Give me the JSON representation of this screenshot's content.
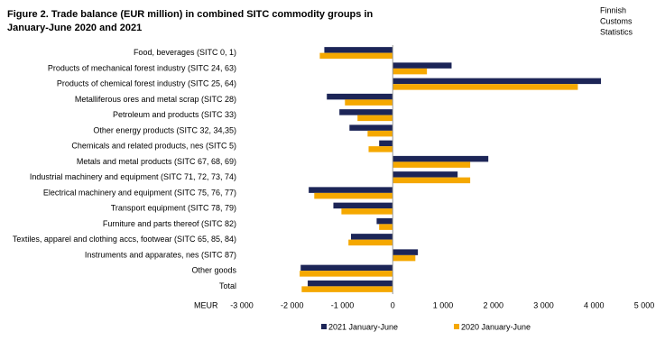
{
  "chart_data": {
    "type": "hbar",
    "title": [
      "Figure 2. Trade balance (EUR million) in combined SITC commodity groups in",
      "January-June 2020 and 2021"
    ],
    "source": [
      "Finnish",
      "Customs",
      "Statistics"
    ],
    "x_axis_label": "MEUR",
    "categories": [
      "Food, beverages (SITC 0, 1)",
      "Products of mechanical forest industry (SITC 24, 63)",
      "Products of chemical forest industry (SITC 25, 64)",
      "Metalliferous ores and metal scrap (SITC 28)",
      "Petroleum and products (SITC 33)",
      "Other energy products (SITC 32, 34,35)",
      "Chemicals and related products, nes (SITC 5)",
      "Metals and metal products (SITC 67, 68, 69)",
      "Industrial machinery and equipment (SITC 71, 72, 73, 74)",
      "Electrical machinery and equipment (SITC 75, 76, 77)",
      "Transport equipment (SITC 78, 79)",
      "Furniture and parts thereof (SITC 82)",
      "Textiles, apparel and clothing accs, footwear (SITC 65, 85, 84)",
      "Instruments and apparates, nes (SITC 87)",
      "Other goods",
      "Total"
    ],
    "series": [
      {
        "name": "2021 January-June",
        "color": "#1c2557",
        "values": [
          -1360,
          1170,
          4140,
          -1310,
          -1060,
          -860,
          -270,
          1900,
          1290,
          -1670,
          -1180,
          -320,
          -830,
          500,
          -1830,
          -1690
        ]
      },
      {
        "name": "2020 January-June",
        "color": "#f5a800",
        "values": [
          -1450,
          680,
          3680,
          -950,
          -700,
          -500,
          -480,
          1540,
          1540,
          -1560,
          -1020,
          -270,
          -880,
          450,
          -1850,
          -1810
        ]
      }
    ],
    "xlim": [
      -3000,
      5000
    ],
    "xticks": [
      {
        "value": -3000,
        "label": "-3 000"
      },
      {
        "value": -2000,
        "label": "-2 000"
      },
      {
        "value": -1000,
        "label": "-1 000"
      },
      0,
      {
        "value": 1000,
        "label": "1 000"
      },
      {
        "value": 2000,
        "label": "2 000"
      },
      {
        "value": 3000,
        "label": "3 000"
      },
      {
        "value": 4000,
        "label": "4 000"
      },
      {
        "value": 5000,
        "label": "5 000"
      }
    ],
    "legend": "bottom"
  }
}
